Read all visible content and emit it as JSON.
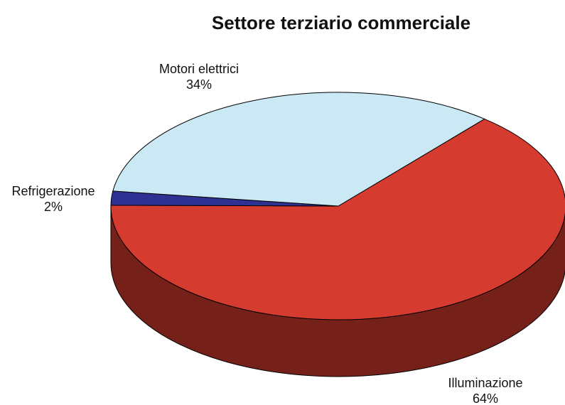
{
  "chart_data": {
    "type": "pie",
    "title": "Settore terziario commerciale",
    "categories": [
      "Illuminazione",
      "Refrigerazione",
      "Motori elettrici"
    ],
    "values": [
      64,
      2,
      34
    ],
    "value_labels": [
      "64%",
      "2%",
      "34%"
    ],
    "colors": [
      "#d63b30",
      "#2e3192",
      "#cbe9f4"
    ]
  }
}
